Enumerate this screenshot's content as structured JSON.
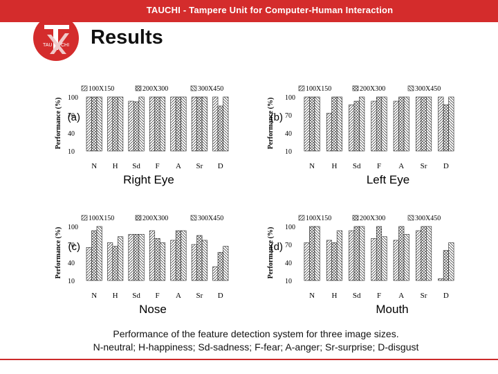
{
  "header": {
    "banner": "TAUCHI - Tampere Unit for Computer-Human Interaction",
    "title": "Results",
    "logo_text_small_left": "TAU",
    "logo_text_small_right": "CHI"
  },
  "colors": {
    "banner": "#d42c2c",
    "bar_stroke": "#222222"
  },
  "caption": {
    "line1": "Performance of the feature detection system for three image sizes.",
    "line2": "N-neutral; H-happiness; Sd-sadness; F-fear; A-anger; Sr-surprise; D-disgust"
  },
  "chart_data": [
    {
      "type": "bar",
      "panel": "(a)",
      "xlabel": "Right Eye",
      "ylabel": "Performance (%)",
      "categories": [
        "N",
        "H",
        "Sd",
        "F",
        "A",
        "Sr",
        "D"
      ],
      "yticks": [
        10,
        40,
        70,
        100
      ],
      "ylim": [
        10,
        100
      ],
      "legend": "top",
      "series": [
        {
          "name": "100X150",
          "pattern": "diag",
          "values": [
            100,
            100,
            93,
            100,
            100,
            100,
            100
          ]
        },
        {
          "name": "200X300",
          "pattern": "cross",
          "values": [
            100,
            100,
            92,
            100,
            100,
            100,
            85
          ]
        },
        {
          "name": "300X450",
          "pattern": "hatch",
          "values": [
            100,
            100,
            100,
            100,
            100,
            100,
            100
          ]
        }
      ]
    },
    {
      "type": "bar",
      "panel": "(b)",
      "xlabel": "Left Eye",
      "ylabel": "Performance (%)",
      "categories": [
        "N",
        "H",
        "Sd",
        "F",
        "A",
        "Sr",
        "D"
      ],
      "yticks": [
        10,
        40,
        70,
        100
      ],
      "ylim": [
        10,
        100
      ],
      "legend": "top",
      "series": [
        {
          "name": "100X150",
          "pattern": "diag",
          "values": [
            100,
            73,
            87,
            93,
            93,
            100,
            100
          ]
        },
        {
          "name": "200X300",
          "pattern": "cross",
          "values": [
            100,
            100,
            93,
            100,
            100,
            100,
            87
          ]
        },
        {
          "name": "300X450",
          "pattern": "hatch",
          "values": [
            100,
            100,
            100,
            100,
            100,
            100,
            100
          ]
        }
      ]
    },
    {
      "type": "bar",
      "panel": "(c)",
      "xlabel": "Nose",
      "ylabel": "Performance (%)",
      "categories": [
        "N",
        "H",
        "Sd",
        "F",
        "A",
        "Sr",
        "D"
      ],
      "yticks": [
        10,
        40,
        70,
        100
      ],
      "ylim": [
        10,
        100
      ],
      "legend": "top",
      "series": [
        {
          "name": "100X150",
          "pattern": "diag",
          "values": [
            65,
            73,
            87,
            93,
            77,
            70,
            33
          ]
        },
        {
          "name": "200X300",
          "pattern": "cross",
          "values": [
            93,
            67,
            87,
            80,
            93,
            85,
            57
          ]
        },
        {
          "name": "300X450",
          "pattern": "hatch",
          "values": [
            100,
            83,
            87,
            73,
            93,
            77,
            67
          ]
        }
      ]
    },
    {
      "type": "bar",
      "panel": "(d)",
      "xlabel": "Mouth",
      "ylabel": "Performance (%)",
      "categories": [
        "N",
        "H",
        "Sd",
        "F",
        "A",
        "Sr",
        "D"
      ],
      "yticks": [
        10,
        40,
        70,
        100
      ],
      "ylim": [
        10,
        100
      ],
      "legend": "top",
      "series": [
        {
          "name": "100X150",
          "pattern": "diag",
          "values": [
            73,
            77,
            93,
            80,
            77,
            93,
            13
          ]
        },
        {
          "name": "200X300",
          "pattern": "cross",
          "values": [
            100,
            73,
            100,
            100,
            100,
            100,
            60
          ]
        },
        {
          "name": "300X450",
          "pattern": "hatch",
          "values": [
            100,
            93,
            100,
            83,
            87,
            100,
            73
          ]
        }
      ]
    }
  ]
}
